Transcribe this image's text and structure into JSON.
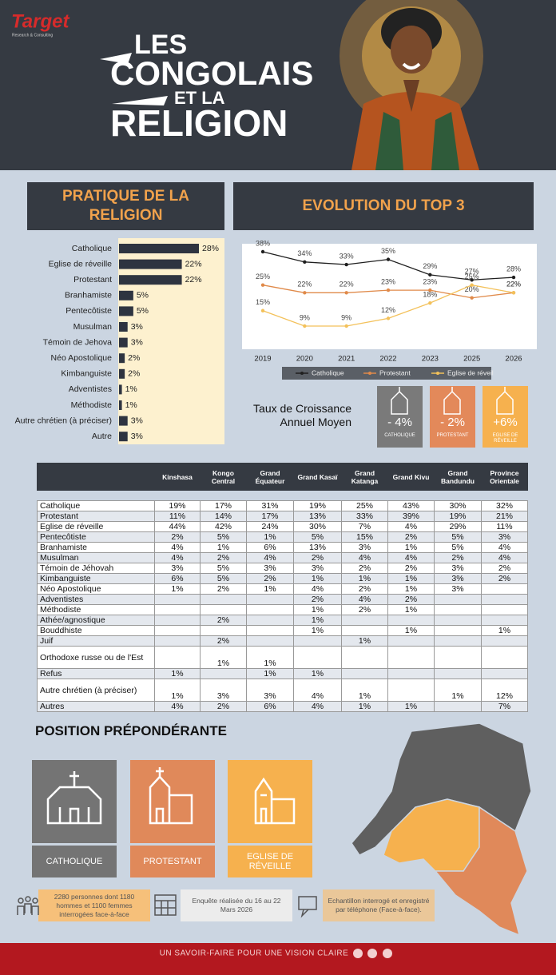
{
  "header": {
    "logo": "Target",
    "logo_sub": "Research & Consulting",
    "title_lines": [
      "LES",
      "CONGOLAIS",
      "ET LA",
      "RELIGION"
    ]
  },
  "practice": {
    "title": "PRATIQUE DE LA RELIGION",
    "chart": {
      "type": "bar",
      "orientation": "horizontal",
      "color": "#2e3440",
      "categories": [
        "Catholique",
        "Eglise de réveille",
        "Protestant",
        "Branhamiste",
        "Pentecôtiste",
        "Musulman",
        "Témoin de Jehova",
        "Néo Apostolique",
        "Kimbanguiste",
        "Adventistes",
        "Méthodiste",
        "Autre chrétien (à préciser)",
        "Autre"
      ],
      "values": [
        28,
        22,
        22,
        5,
        5,
        3,
        3,
        2,
        2,
        1,
        1,
        3,
        3
      ],
      "value_labels": [
        "28%",
        "22%",
        "22%",
        "5%",
        "5%",
        "3%",
        "3%",
        "2%",
        "2%",
        "1%",
        "1%",
        "3%",
        "3%"
      ]
    }
  },
  "evolution": {
    "title": "EVOLUTION DU TOP 3",
    "chart": {
      "type": "line",
      "categories": [
        "2019",
        "2020",
        "2021",
        "2022",
        "2023",
        "2025",
        "2026"
      ],
      "series": [
        {
          "name": "Catholique",
          "color": "#1f1f1f",
          "values": [
            38,
            34,
            33,
            35,
            29,
            27,
            28
          ],
          "value_labels": [
            "38%",
            "34%",
            "33%",
            "35%",
            "29%",
            "27%",
            "28%"
          ]
        },
        {
          "name": "Protestant",
          "color": "#e08a4a",
          "values": [
            25,
            22,
            22,
            23,
            23,
            20,
            22
          ],
          "value_labels": [
            "25%",
            "22%",
            "22%",
            "23%",
            "23%",
            "20%",
            "22%"
          ]
        },
        {
          "name": "Eglise de réveil",
          "color": "#f3c15a",
          "values": [
            15,
            9,
            9,
            12,
            18,
            25,
            22
          ],
          "value_labels": [
            "15%",
            "9%",
            "9%",
            "12%",
            "18%",
            "25%",
            "22%"
          ]
        }
      ]
    },
    "growth": {
      "label": "Taux de Croissance Annuel Moyen",
      "cards": [
        {
          "value": "- 4%",
          "label": "CATHOLIQUE"
        },
        {
          "value": "- 2%",
          "label": "PROTESTANT"
        },
        {
          "value": "+6%",
          "label": "EGLISE DE RÉVEILLE"
        }
      ]
    }
  },
  "table": {
    "headers": [
      "Kinshasa",
      "Kongo Central",
      "Grand Équateur",
      "Grand Kasaï",
      "Grand Katanga",
      "Grand Kivu",
      "Grand Bandundu",
      "Province Orientale"
    ],
    "rows": [
      [
        "Catholique",
        "19%",
        "17%",
        "31%",
        "19%",
        "25%",
        "43%",
        "30%",
        "32%"
      ],
      [
        "Protestant",
        "11%",
        "14%",
        "17%",
        "13%",
        "33%",
        "39%",
        "19%",
        "21%"
      ],
      [
        "Eglise de réveille",
        "44%",
        "42%",
        "24%",
        "30%",
        "7%",
        "4%",
        "29%",
        "11%"
      ],
      [
        "Pentecôtiste",
        "2%",
        "5%",
        "1%",
        "5%",
        "15%",
        "2%",
        "5%",
        "3%"
      ],
      [
        "Branhamiste",
        "4%",
        "1%",
        "6%",
        "13%",
        "3%",
        "1%",
        "5%",
        "4%"
      ],
      [
        "Musulman",
        "4%",
        "2%",
        "4%",
        "2%",
        "4%",
        "4%",
        "2%",
        "4%"
      ],
      [
        "Témoin de Jéhovah",
        "3%",
        "5%",
        "3%",
        "3%",
        "2%",
        "2%",
        "3%",
        "2%"
      ],
      [
        "Kimbanguiste",
        "6%",
        "5%",
        "2%",
        "1%",
        "1%",
        "1%",
        "3%",
        "2%"
      ],
      [
        "Néo Apostolique",
        "1%",
        "2%",
        "1%",
        "4%",
        "2%",
        "1%",
        "3%",
        null
      ],
      [
        "Adventistes",
        null,
        null,
        null,
        "2%",
        "4%",
        "2%",
        null,
        null
      ],
      [
        "Méthodiste",
        null,
        null,
        null,
        "1%",
        "2%",
        "1%",
        null,
        null
      ],
      [
        "Athée/agnostique",
        null,
        "2%",
        null,
        "1%",
        null,
        null,
        null,
        null
      ],
      [
        "Bouddhiste",
        null,
        null,
        null,
        "1%",
        null,
        "1%",
        null,
        "1%"
      ],
      [
        "Juif",
        null,
        "2%",
        null,
        null,
        "1%",
        null,
        null,
        null
      ],
      [
        "Orthodoxe russe ou de l'Est",
        null,
        "1%",
        "1%",
        null,
        null,
        null,
        null,
        null
      ],
      [
        "Refus",
        "1%",
        null,
        "1%",
        "1%",
        null,
        null,
        null,
        null
      ],
      [
        "Autre chrétien  (à préciser)",
        "1%",
        "3%",
        "3%",
        "4%",
        "1%",
        null,
        "1%",
        "12%"
      ],
      [
        "Autres",
        "4%",
        "2%",
        "6%",
        "4%",
        "1%",
        "1%",
        null,
        "7%"
      ]
    ]
  },
  "position": {
    "title": "POSITION PRÉPONDÉRANTE",
    "cards": [
      "CATHOLIQUE",
      "PROTESTANT",
      "EGLISE DE RÉVEILLE"
    ]
  },
  "notes": [
    "2280 personnes dont 1180 hommes et 1100 femmes interrogées face-à-face",
    "Enquête réalisée du 16 au 22 Mars 2026",
    "Echantillon interrogé et enregistré par téléphone (Face-à-face)."
  ],
  "footer": "UN SAVOIR-FAIRE POUR UNE VISION CLAIRE"
}
